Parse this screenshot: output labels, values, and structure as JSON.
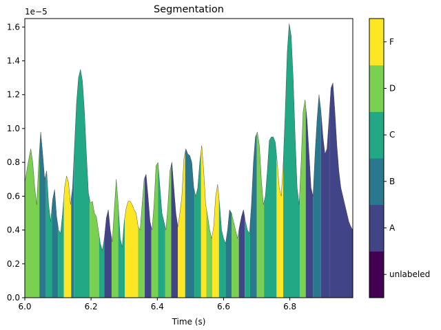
{
  "chart_data": {
    "type": "area",
    "title": "Segmentation",
    "xlabel": "Time (s)",
    "ylabel": "",
    "y_scale_label": "1e−5",
    "xlim": [
      6.0,
      6.99
    ],
    "ylim": [
      0.0,
      1.65
    ],
    "x_ticks": [
      "6.0",
      "6.2",
      "6.4",
      "6.6",
      "6.8"
    ],
    "y_ticks": [
      "0.0",
      "0.2",
      "0.4",
      "0.6",
      "0.8",
      "1.0",
      "1.2",
      "1.4",
      "1.6"
    ],
    "envelope_unit": "1e-5",
    "envelope": [
      [
        6.0,
        0.68
      ],
      [
        6.005,
        0.74
      ],
      [
        6.012,
        0.82
      ],
      [
        6.018,
        0.88
      ],
      [
        6.024,
        0.8
      ],
      [
        6.03,
        0.65
      ],
      [
        6.036,
        0.55
      ],
      [
        6.042,
        0.8
      ],
      [
        6.048,
        0.98
      ],
      [
        6.054,
        0.85
      ],
      [
        6.06,
        0.7
      ],
      [
        6.066,
        0.75
      ],
      [
        6.072,
        0.55
      ],
      [
        6.078,
        0.45
      ],
      [
        6.084,
        0.58
      ],
      [
        6.09,
        0.64
      ],
      [
        6.096,
        0.48
      ],
      [
        6.102,
        0.4
      ],
      [
        6.108,
        0.38
      ],
      [
        6.114,
        0.5
      ],
      [
        6.12,
        0.65
      ],
      [
        6.126,
        0.72
      ],
      [
        6.132,
        0.68
      ],
      [
        6.138,
        0.55
      ],
      [
        6.144,
        0.65
      ],
      [
        6.15,
        0.9
      ],
      [
        6.156,
        1.15
      ],
      [
        6.162,
        1.3
      ],
      [
        6.168,
        1.35
      ],
      [
        6.174,
        1.28
      ],
      [
        6.18,
        1.1
      ],
      [
        6.186,
        0.85
      ],
      [
        6.192,
        0.62
      ],
      [
        6.198,
        0.56
      ],
      [
        6.204,
        0.57
      ],
      [
        6.21,
        0.5
      ],
      [
        6.216,
        0.48
      ],
      [
        6.222,
        0.4
      ],
      [
        6.228,
        0.32
      ],
      [
        6.234,
        0.28
      ],
      [
        6.24,
        0.35
      ],
      [
        6.246,
        0.47
      ],
      [
        6.252,
        0.52
      ],
      [
        6.258,
        0.4
      ],
      [
        6.264,
        0.33
      ],
      [
        6.27,
        0.52
      ],
      [
        6.276,
        0.7
      ],
      [
        6.282,
        0.55
      ],
      [
        6.288,
        0.35
      ],
      [
        6.294,
        0.3
      ],
      [
        6.3,
        0.45
      ],
      [
        6.306,
        0.53
      ],
      [
        6.312,
        0.57
      ],
      [
        6.318,
        0.57
      ],
      [
        6.324,
        0.55
      ],
      [
        6.33,
        0.52
      ],
      [
        6.336,
        0.5
      ],
      [
        6.342,
        0.42
      ],
      [
        6.348,
        0.4
      ],
      [
        6.354,
        0.55
      ],
      [
        6.36,
        0.7
      ],
      [
        6.366,
        0.73
      ],
      [
        6.372,
        0.6
      ],
      [
        6.378,
        0.45
      ],
      [
        6.384,
        0.4
      ],
      [
        6.39,
        0.55
      ],
      [
        6.396,
        0.78
      ],
      [
        6.402,
        0.8
      ],
      [
        6.408,
        0.65
      ],
      [
        6.414,
        0.5
      ],
      [
        6.42,
        0.45
      ],
      [
        6.426,
        0.4
      ],
      [
        6.432,
        0.55
      ],
      [
        6.438,
        0.75
      ],
      [
        6.444,
        0.8
      ],
      [
        6.45,
        0.65
      ],
      [
        6.456,
        0.5
      ],
      [
        6.462,
        0.42
      ],
      [
        6.468,
        0.5
      ],
      [
        6.474,
        0.6
      ],
      [
        6.48,
        0.82
      ],
      [
        6.486,
        0.88
      ],
      [
        6.492,
        0.85
      ],
      [
        6.498,
        0.84
      ],
      [
        6.504,
        0.8
      ],
      [
        6.51,
        0.65
      ],
      [
        6.516,
        0.6
      ],
      [
        6.522,
        0.65
      ],
      [
        6.528,
        0.8
      ],
      [
        6.534,
        0.9
      ],
      [
        6.54,
        0.75
      ],
      [
        6.546,
        0.55
      ],
      [
        6.552,
        0.48
      ],
      [
        6.558,
        0.4
      ],
      [
        6.564,
        0.35
      ],
      [
        6.57,
        0.42
      ],
      [
        6.576,
        0.6
      ],
      [
        6.582,
        0.67
      ],
      [
        6.588,
        0.55
      ],
      [
        6.594,
        0.4
      ],
      [
        6.6,
        0.35
      ],
      [
        6.606,
        0.32
      ],
      [
        6.612,
        0.4
      ],
      [
        6.618,
        0.52
      ],
      [
        6.624,
        0.5
      ],
      [
        6.63,
        0.45
      ],
      [
        6.636,
        0.4
      ],
      [
        6.642,
        0.35
      ],
      [
        6.648,
        0.42
      ],
      [
        6.654,
        0.48
      ],
      [
        6.66,
        0.52
      ],
      [
        6.666,
        0.45
      ],
      [
        6.672,
        0.4
      ],
      [
        6.678,
        0.38
      ],
      [
        6.684,
        0.55
      ],
      [
        6.69,
        0.8
      ],
      [
        6.696,
        0.95
      ],
      [
        6.702,
        0.98
      ],
      [
        6.708,
        0.9
      ],
      [
        6.714,
        0.7
      ],
      [
        6.72,
        0.55
      ],
      [
        6.726,
        0.6
      ],
      [
        6.732,
        0.75
      ],
      [
        6.738,
        0.93
      ],
      [
        6.744,
        0.95
      ],
      [
        6.75,
        0.95
      ],
      [
        6.756,
        0.92
      ],
      [
        6.762,
        0.8
      ],
      [
        6.768,
        0.65
      ],
      [
        6.774,
        0.6
      ],
      [
        6.78,
        0.8
      ],
      [
        6.786,
        1.1
      ],
      [
        6.792,
        1.45
      ],
      [
        6.798,
        1.62
      ],
      [
        6.804,
        1.55
      ],
      [
        6.81,
        1.3
      ],
      [
        6.816,
        0.95
      ],
      [
        6.822,
        0.65
      ],
      [
        6.828,
        0.55
      ],
      [
        6.834,
        0.8
      ],
      [
        6.84,
        1.1
      ],
      [
        6.846,
        1.17
      ],
      [
        6.852,
        1.05
      ],
      [
        6.858,
        0.85
      ],
      [
        6.864,
        0.65
      ],
      [
        6.87,
        0.6
      ],
      [
        6.876,
        0.85
      ],
      [
        6.882,
        1.05
      ],
      [
        6.888,
        1.2
      ],
      [
        6.894,
        1.1
      ],
      [
        6.9,
        0.95
      ],
      [
        6.906,
        0.85
      ],
      [
        6.912,
        0.88
      ],
      [
        6.918,
        1.05
      ],
      [
        6.924,
        1.24
      ],
      [
        6.93,
        1.27
      ],
      [
        6.936,
        1.1
      ],
      [
        6.942,
        0.9
      ],
      [
        6.948,
        0.75
      ],
      [
        6.954,
        0.65
      ],
      [
        6.96,
        0.6
      ],
      [
        6.966,
        0.55
      ],
      [
        6.972,
        0.5
      ],
      [
        6.978,
        0.45
      ],
      [
        6.984,
        0.42
      ],
      [
        6.99,
        0.4
      ]
    ],
    "segments": [
      {
        "start": 6.0,
        "end": 6.044,
        "label": "D"
      },
      {
        "start": 6.044,
        "end": 6.064,
        "label": "B"
      },
      {
        "start": 6.064,
        "end": 6.082,
        "label": "C"
      },
      {
        "start": 6.082,
        "end": 6.1,
        "label": "B"
      },
      {
        "start": 6.1,
        "end": 6.118,
        "label": "C"
      },
      {
        "start": 6.118,
        "end": 6.14,
        "label": "F"
      },
      {
        "start": 6.14,
        "end": 6.148,
        "label": "B"
      },
      {
        "start": 6.148,
        "end": 6.196,
        "label": "C"
      },
      {
        "start": 6.196,
        "end": 6.224,
        "label": "D"
      },
      {
        "start": 6.224,
        "end": 6.24,
        "label": "C"
      },
      {
        "start": 6.24,
        "end": 6.262,
        "label": "A"
      },
      {
        "start": 6.262,
        "end": 6.282,
        "label": "D"
      },
      {
        "start": 6.282,
        "end": 6.302,
        "label": "C"
      },
      {
        "start": 6.302,
        "end": 6.342,
        "label": "F"
      },
      {
        "start": 6.342,
        "end": 6.362,
        "label": "D"
      },
      {
        "start": 6.362,
        "end": 6.382,
        "label": "A"
      },
      {
        "start": 6.382,
        "end": 6.402,
        "label": "D"
      },
      {
        "start": 6.402,
        "end": 6.424,
        "label": "C"
      },
      {
        "start": 6.424,
        "end": 6.442,
        "label": "D"
      },
      {
        "start": 6.442,
        "end": 6.462,
        "label": "A"
      },
      {
        "start": 6.462,
        "end": 6.484,
        "label": "F"
      },
      {
        "start": 6.484,
        "end": 6.512,
        "label": "B"
      },
      {
        "start": 6.512,
        "end": 6.532,
        "label": "C"
      },
      {
        "start": 6.532,
        "end": 6.548,
        "label": "F"
      },
      {
        "start": 6.548,
        "end": 6.566,
        "label": "D"
      },
      {
        "start": 6.566,
        "end": 6.586,
        "label": "F"
      },
      {
        "start": 6.586,
        "end": 6.606,
        "label": "C"
      },
      {
        "start": 6.606,
        "end": 6.624,
        "label": "B"
      },
      {
        "start": 6.624,
        "end": 6.646,
        "label": "D"
      },
      {
        "start": 6.646,
        "end": 6.664,
        "label": "A"
      },
      {
        "start": 6.664,
        "end": 6.68,
        "label": "C"
      },
      {
        "start": 6.68,
        "end": 6.7,
        "label": "B"
      },
      {
        "start": 6.7,
        "end": 6.722,
        "label": "D"
      },
      {
        "start": 6.722,
        "end": 6.76,
        "label": "C"
      },
      {
        "start": 6.76,
        "end": 6.78,
        "label": "F"
      },
      {
        "start": 6.78,
        "end": 6.83,
        "label": "C"
      },
      {
        "start": 6.83,
        "end": 6.848,
        "label": "D"
      },
      {
        "start": 6.848,
        "end": 6.87,
        "label": "A"
      },
      {
        "start": 6.87,
        "end": 6.894,
        "label": "B"
      },
      {
        "start": 6.894,
        "end": 6.92,
        "label": "A"
      },
      {
        "start": 6.92,
        "end": 6.99,
        "label": "A"
      }
    ],
    "colorbar": {
      "labels": [
        "unlabeled",
        "A",
        "B",
        "C",
        "D",
        "F"
      ],
      "colors": [
        "#440154",
        "#414487",
        "#2a788e",
        "#22a884",
        "#7ad151",
        "#fde725"
      ]
    },
    "grid": false,
    "legend": "colorbar-right"
  }
}
